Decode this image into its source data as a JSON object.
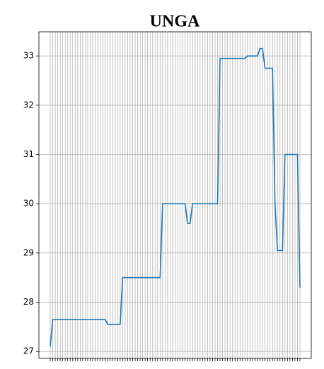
{
  "chart_data": {
    "type": "line",
    "title": "UNGA",
    "categories": [
      null,
      null,
      null,
      null,
      null,
      null,
      null,
      null,
      null,
      null,
      null,
      null,
      null,
      null,
      null,
      null,
      null,
      null,
      null,
      null,
      null,
      null,
      null,
      null,
      null,
      null,
      null,
      null,
      null,
      null,
      null,
      null,
      null,
      null,
      null,
      null,
      null,
      null,
      null,
      null,
      null,
      null,
      null,
      null,
      null,
      null,
      null,
      null,
      null,
      null,
      null,
      null,
      null,
      null,
      null,
      null,
      null,
      null,
      null,
      null,
      null,
      null,
      null,
      null,
      null,
      null,
      null,
      null,
      null,
      null,
      null,
      null,
      null,
      null,
      null,
      null,
      null,
      null,
      null,
      null,
      null,
      null,
      null,
      null,
      null,
      null,
      null,
      null,
      null,
      null,
      null,
      null,
      null,
      null,
      null,
      null,
      null,
      null,
      null,
      null,
      null
    ],
    "series": [
      {
        "name": "UNGA",
        "color": "#1f77b4",
        "values": [
          27.1,
          27.65,
          27.65,
          27.65,
          27.65,
          27.65,
          27.65,
          27.65,
          27.65,
          27.65,
          27.65,
          27.65,
          27.65,
          27.65,
          27.65,
          27.65,
          27.65,
          27.65,
          27.65,
          27.65,
          27.65,
          27.65,
          27.65,
          27.55,
          27.55,
          27.55,
          27.55,
          27.55,
          27.55,
          28.5,
          28.5,
          28.5,
          28.5,
          28.5,
          28.5,
          28.5,
          28.5,
          28.5,
          28.5,
          28.5,
          28.5,
          28.5,
          28.5,
          28.5,
          28.5,
          30.0,
          30.0,
          30.0,
          30.0,
          30.0,
          30.0,
          30.0,
          30.0,
          30.0,
          30.0,
          29.6,
          29.6,
          30.0,
          30.0,
          30.0,
          30.0,
          30.0,
          30.0,
          30.0,
          30.0,
          30.0,
          30.0,
          30.0,
          32.95,
          32.95,
          32.95,
          32.95,
          32.95,
          32.95,
          32.95,
          32.95,
          32.95,
          32.95,
          32.95,
          33.0,
          33.0,
          33.0,
          33.0,
          33.0,
          33.15,
          33.15,
          32.75,
          32.75,
          32.75,
          32.75,
          30.0,
          29.05,
          29.05,
          29.05,
          31.0,
          31.0,
          31.0,
          31.0,
          31.0,
          31.0,
          28.3
        ]
      }
    ],
    "ylim": [
      26.86,
      33.49
    ],
    "yticks": [
      27,
      28,
      29,
      30,
      31,
      32,
      33
    ],
    "grid": true
  }
}
